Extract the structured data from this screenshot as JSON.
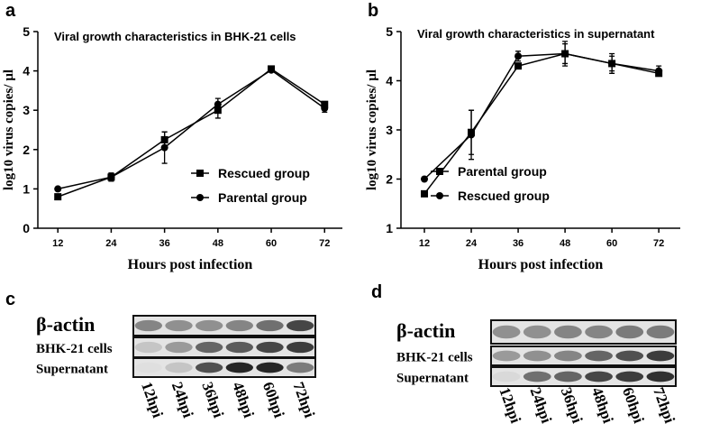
{
  "chart_data": [
    {
      "type": "line",
      "panel": "a",
      "title": "Viral growth characteristics in BHK-21 cells",
      "xlabel": "Hours post infection",
      "ylabel": "log10 virus copies/ µl",
      "x": [
        12,
        24,
        36,
        48,
        60,
        72
      ],
      "xlim": [
        7.5,
        76
      ],
      "xticks": [
        12,
        24,
        36,
        48,
        60,
        72
      ],
      "ylim": [
        0,
        5
      ],
      "yticks": [
        0,
        1,
        2,
        3,
        4,
        5
      ],
      "legend": "lower right",
      "series": [
        {
          "name": "Rescued group",
          "marker": "square",
          "color": "#000000",
          "values": [
            0.8,
            1.3,
            2.25,
            3.0,
            4.05,
            3.15
          ],
          "errors": [
            0.05,
            0.1,
            0.2,
            0.2,
            0.05,
            0.05
          ]
        },
        {
          "name": "Parental group",
          "marker": "circle",
          "color": "#000000",
          "values": [
            1.0,
            1.3,
            2.05,
            3.15,
            4.02,
            3.05
          ],
          "errors": [
            0.03,
            0.1,
            0.4,
            0.15,
            0.05,
            0.1
          ]
        }
      ]
    },
    {
      "type": "line",
      "panel": "b",
      "title": "Viral growth characteristics in supernatant",
      "xlabel": "Hours post infection",
      "ylabel": "log10 virus copies/ µl",
      "x": [
        12,
        24,
        36,
        48,
        60,
        72
      ],
      "xlim": [
        6,
        77.5
      ],
      "xticks": [
        12,
        24,
        36,
        48,
        60,
        72
      ],
      "ylim": [
        1,
        5
      ],
      "yticks": [
        1,
        2,
        3,
        4,
        5
      ],
      "legend": "lower right",
      "series": [
        {
          "name": "Parental group",
          "marker": "square",
          "color": "#000000",
          "values": [
            1.7,
            2.95,
            4.3,
            4.55,
            4.35,
            4.15
          ],
          "errors": [
            0.03,
            0.45,
            0.05,
            0.25,
            0.2,
            0.05
          ]
        },
        {
          "name": "Rescued group",
          "marker": "circle",
          "color": "#000000",
          "values": [
            2.0,
            2.9,
            4.5,
            4.55,
            4.35,
            4.2
          ],
          "errors": [
            0.02,
            0.5,
            0.1,
            0.2,
            0.15,
            0.1
          ]
        }
      ]
    }
  ],
  "blots": [
    {
      "panel": "c",
      "rows": [
        "β-actin",
        "BHK-21 cells",
        "Supernatant"
      ],
      "lanes": [
        "12hpi",
        "24hpi",
        "36hpi",
        "48hpi",
        "60hpi",
        "72hpi"
      ]
    },
    {
      "panel": "d",
      "rows": [
        "β-actin",
        "BHK-21 cells",
        "Supernatant"
      ],
      "lanes": [
        "12hpi",
        "24hpi",
        "36hpi",
        "48hpi",
        "60hpi",
        "72hpi"
      ]
    }
  ]
}
